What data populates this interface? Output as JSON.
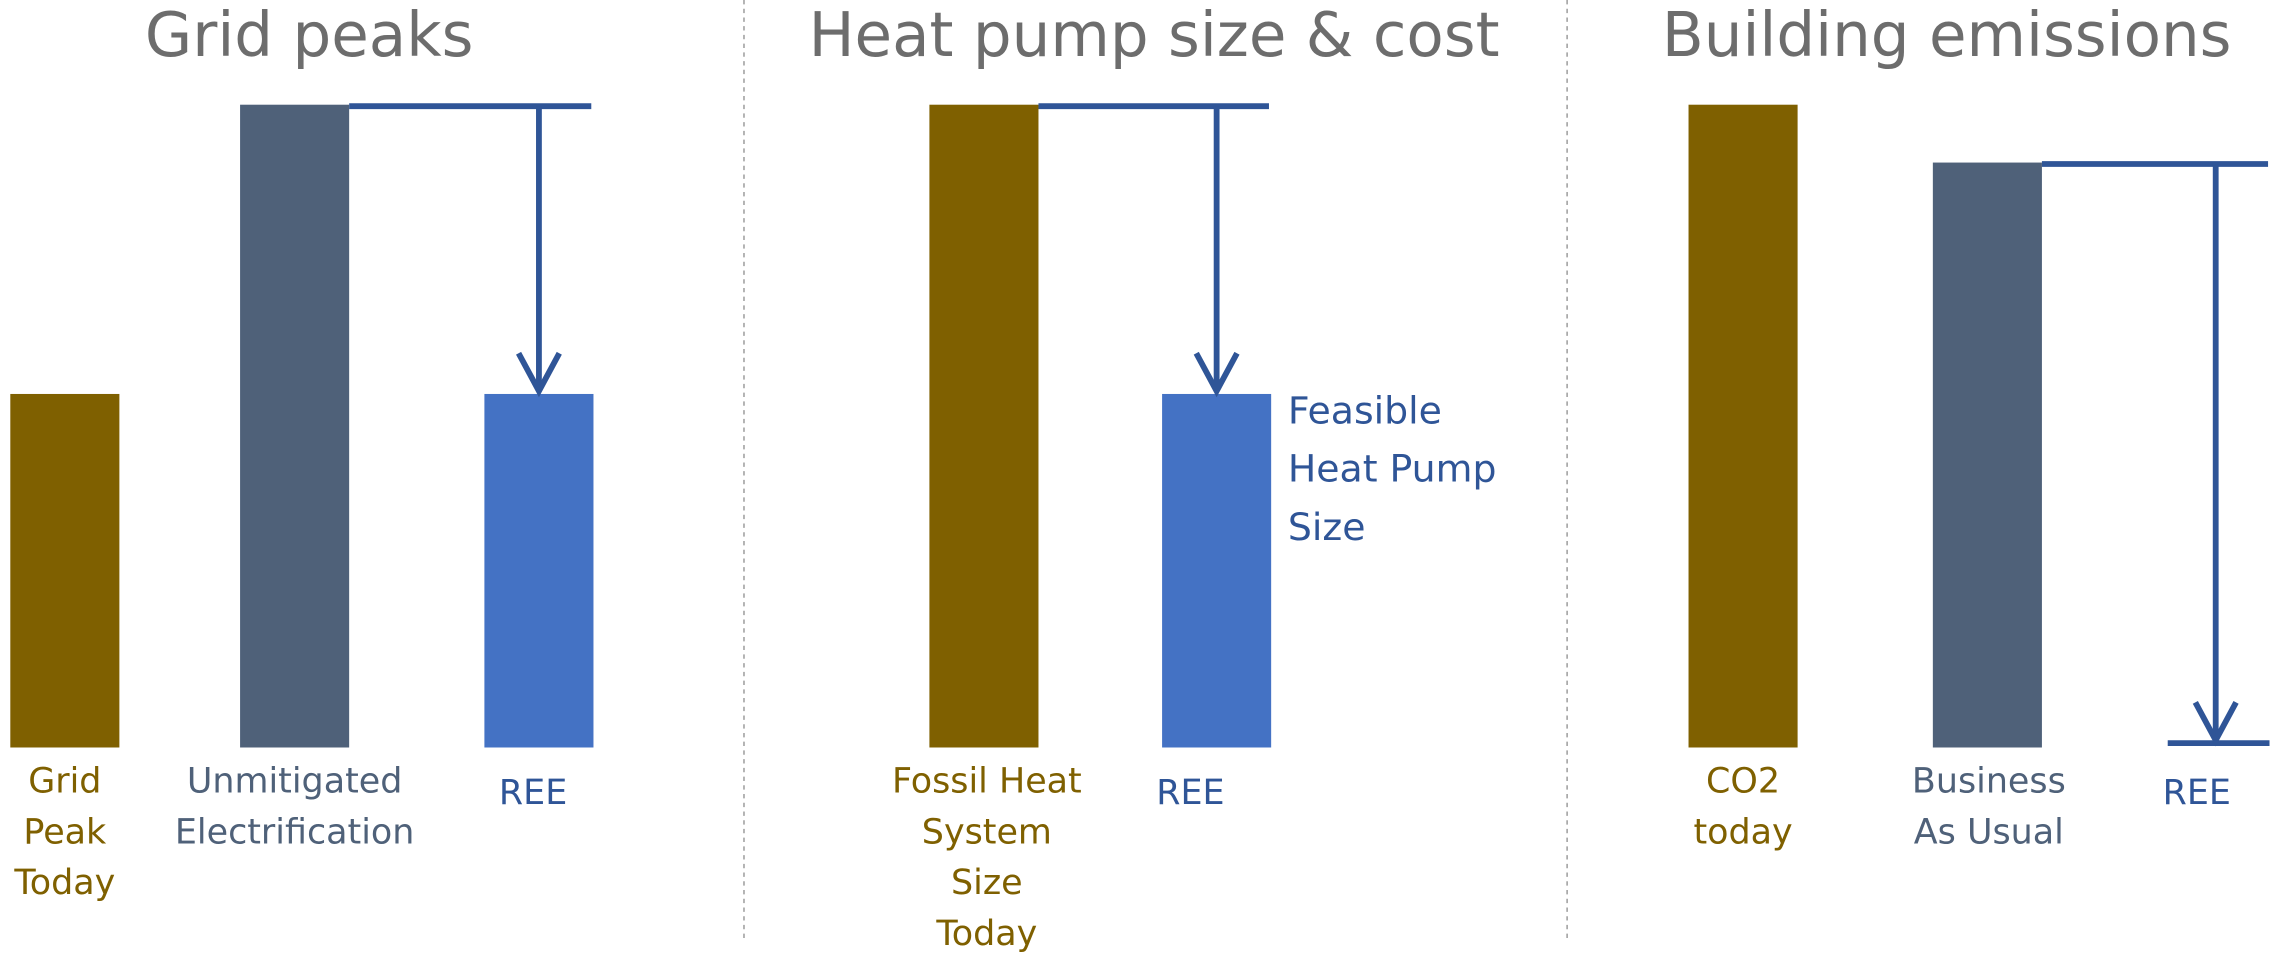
{
  "chart_data": [
    {
      "type": "bar",
      "title": "Grid peaks",
      "categories": [
        [
          "Grid",
          "Peak",
          "Today"
        ],
        [
          "Unmitigated",
          "Electrification"
        ],
        [
          "REE"
        ]
      ],
      "values": [
        55,
        100,
        55
      ],
      "colors": [
        "#7f6000",
        "#4f6179",
        "#4472c4"
      ],
      "label_colors": [
        "#7f6000",
        "#4f6179",
        "#2f5597"
      ],
      "ylim": [
        0,
        100
      ]
    },
    {
      "type": "bar",
      "title": "Heat pump size & cost",
      "categories": [
        [
          "Fossil Heat",
          "System",
          "Size",
          "Today"
        ],
        [
          "REE"
        ]
      ],
      "values": [
        100,
        55
      ],
      "colors": [
        "#7f6000",
        "#4472c4"
      ],
      "label_colors": [
        "#7f6000",
        "#2f5597"
      ],
      "annotation": [
        "Feasible",
        "Heat Pump",
        "Size"
      ],
      "ylim": [
        0,
        100
      ]
    },
    {
      "type": "bar",
      "title": "Building emissions",
      "categories": [
        [
          "CO2",
          "today"
        ],
        [
          "Business",
          "As Usual"
        ],
        [
          "REE"
        ]
      ],
      "values": [
        100,
        91,
        0
      ],
      "colors": [
        "#7f6000",
        "#4f6179",
        "#4472c4"
      ],
      "label_colors": [
        "#7f6000",
        "#4f6179",
        "#2f5597"
      ],
      "ylim": [
        0,
        100
      ]
    }
  ]
}
